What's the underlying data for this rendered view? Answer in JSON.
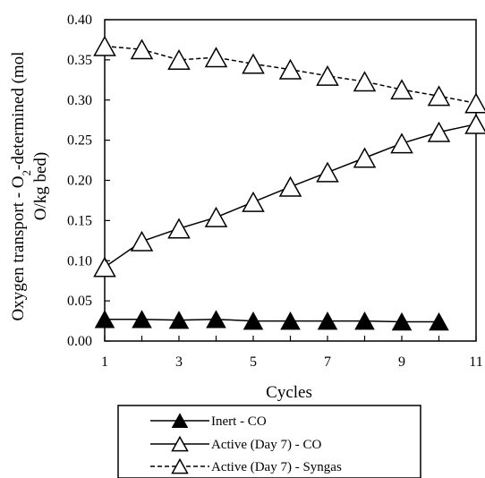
{
  "chart_data": {
    "type": "line",
    "xlabel": "Cycles",
    "ylabel_parts": [
      "Oxygen transport - O",
      "2",
      "-determined (mol",
      "O/kg bed)"
    ],
    "xlim": [
      1,
      11
    ],
    "ylim": [
      0,
      0.4
    ],
    "xticks": [
      1,
      3,
      5,
      7,
      9,
      11
    ],
    "yticks": [
      0.0,
      0.05,
      0.1,
      0.15,
      0.2,
      0.25,
      0.3,
      0.35,
      0.4
    ],
    "ytick_labels": [
      "0.00",
      "0.05",
      "0.10",
      "0.15",
      "0.20",
      "0.25",
      "0.30",
      "0.35",
      "0.40"
    ],
    "grid": false,
    "legend_position": "bottom",
    "series": [
      {
        "name": "Inert - CO",
        "marker": "filled-triangle",
        "line": "solid",
        "color": "#000000",
        "x": [
          1,
          2,
          3,
          4,
          5,
          6,
          7,
          8,
          9,
          10
        ],
        "values": [
          0.027,
          0.027,
          0.026,
          0.027,
          0.025,
          0.025,
          0.025,
          0.025,
          0.024,
          0.024
        ]
      },
      {
        "name": "Active (Day 7) - CO",
        "marker": "open-triangle",
        "line": "solid",
        "color": "#000000",
        "x": [
          1,
          2,
          3,
          4,
          5,
          6,
          7,
          8,
          9,
          10,
          11
        ],
        "values": [
          0.092,
          0.124,
          0.14,
          0.154,
          0.173,
          0.192,
          0.21,
          0.228,
          0.246,
          0.26,
          0.27
        ]
      },
      {
        "name": "Active (Day 7) - Syngas",
        "marker": "open-triangle",
        "line": "dashed",
        "color": "#000000",
        "x": [
          1,
          2,
          3,
          4,
          5,
          6,
          7,
          8,
          9,
          10,
          11
        ],
        "values": [
          0.367,
          0.363,
          0.35,
          0.353,
          0.345,
          0.338,
          0.33,
          0.323,
          0.313,
          0.305,
          0.296
        ]
      }
    ]
  }
}
